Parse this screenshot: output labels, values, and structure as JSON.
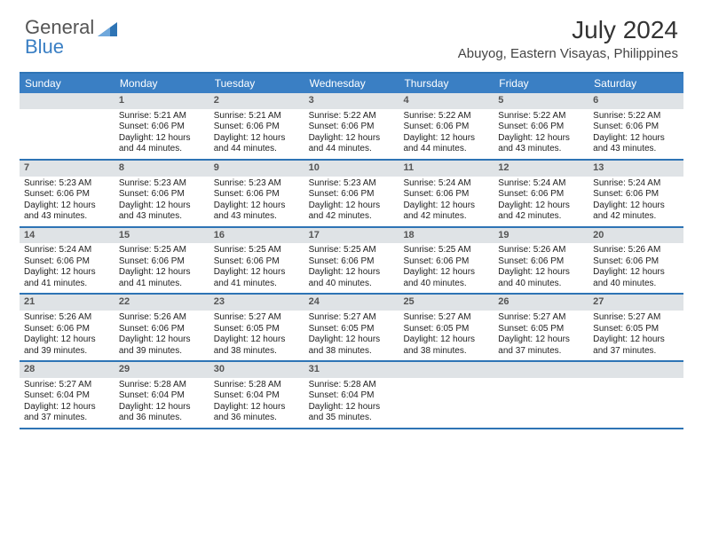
{
  "branding": {
    "logo_text_1": "General",
    "logo_text_2": "Blue",
    "logo_color_1": "#555555",
    "logo_color_2": "#3a7fc4"
  },
  "title": "July 2024",
  "location": "Abuyog, Eastern Visayas, Philippines",
  "colors": {
    "header_bg": "#3a7fc4",
    "border": "#2e74b5",
    "daynum_bg": "#dfe3e6",
    "text": "#222222"
  },
  "day_headers": [
    "Sunday",
    "Monday",
    "Tuesday",
    "Wednesday",
    "Thursday",
    "Friday",
    "Saturday"
  ],
  "weeks": [
    [
      {
        "num": "",
        "sunrise": "",
        "sunset": "",
        "daylight": ""
      },
      {
        "num": "1",
        "sunrise": "Sunrise: 5:21 AM",
        "sunset": "Sunset: 6:06 PM",
        "daylight": "Daylight: 12 hours and 44 minutes."
      },
      {
        "num": "2",
        "sunrise": "Sunrise: 5:21 AM",
        "sunset": "Sunset: 6:06 PM",
        "daylight": "Daylight: 12 hours and 44 minutes."
      },
      {
        "num": "3",
        "sunrise": "Sunrise: 5:22 AM",
        "sunset": "Sunset: 6:06 PM",
        "daylight": "Daylight: 12 hours and 44 minutes."
      },
      {
        "num": "4",
        "sunrise": "Sunrise: 5:22 AM",
        "sunset": "Sunset: 6:06 PM",
        "daylight": "Daylight: 12 hours and 44 minutes."
      },
      {
        "num": "5",
        "sunrise": "Sunrise: 5:22 AM",
        "sunset": "Sunset: 6:06 PM",
        "daylight": "Daylight: 12 hours and 43 minutes."
      },
      {
        "num": "6",
        "sunrise": "Sunrise: 5:22 AM",
        "sunset": "Sunset: 6:06 PM",
        "daylight": "Daylight: 12 hours and 43 minutes."
      }
    ],
    [
      {
        "num": "7",
        "sunrise": "Sunrise: 5:23 AM",
        "sunset": "Sunset: 6:06 PM",
        "daylight": "Daylight: 12 hours and 43 minutes."
      },
      {
        "num": "8",
        "sunrise": "Sunrise: 5:23 AM",
        "sunset": "Sunset: 6:06 PM",
        "daylight": "Daylight: 12 hours and 43 minutes."
      },
      {
        "num": "9",
        "sunrise": "Sunrise: 5:23 AM",
        "sunset": "Sunset: 6:06 PM",
        "daylight": "Daylight: 12 hours and 43 minutes."
      },
      {
        "num": "10",
        "sunrise": "Sunrise: 5:23 AM",
        "sunset": "Sunset: 6:06 PM",
        "daylight": "Daylight: 12 hours and 42 minutes."
      },
      {
        "num": "11",
        "sunrise": "Sunrise: 5:24 AM",
        "sunset": "Sunset: 6:06 PM",
        "daylight": "Daylight: 12 hours and 42 minutes."
      },
      {
        "num": "12",
        "sunrise": "Sunrise: 5:24 AM",
        "sunset": "Sunset: 6:06 PM",
        "daylight": "Daylight: 12 hours and 42 minutes."
      },
      {
        "num": "13",
        "sunrise": "Sunrise: 5:24 AM",
        "sunset": "Sunset: 6:06 PM",
        "daylight": "Daylight: 12 hours and 42 minutes."
      }
    ],
    [
      {
        "num": "14",
        "sunrise": "Sunrise: 5:24 AM",
        "sunset": "Sunset: 6:06 PM",
        "daylight": "Daylight: 12 hours and 41 minutes."
      },
      {
        "num": "15",
        "sunrise": "Sunrise: 5:25 AM",
        "sunset": "Sunset: 6:06 PM",
        "daylight": "Daylight: 12 hours and 41 minutes."
      },
      {
        "num": "16",
        "sunrise": "Sunrise: 5:25 AM",
        "sunset": "Sunset: 6:06 PM",
        "daylight": "Daylight: 12 hours and 41 minutes."
      },
      {
        "num": "17",
        "sunrise": "Sunrise: 5:25 AM",
        "sunset": "Sunset: 6:06 PM",
        "daylight": "Daylight: 12 hours and 40 minutes."
      },
      {
        "num": "18",
        "sunrise": "Sunrise: 5:25 AM",
        "sunset": "Sunset: 6:06 PM",
        "daylight": "Daylight: 12 hours and 40 minutes."
      },
      {
        "num": "19",
        "sunrise": "Sunrise: 5:26 AM",
        "sunset": "Sunset: 6:06 PM",
        "daylight": "Daylight: 12 hours and 40 minutes."
      },
      {
        "num": "20",
        "sunrise": "Sunrise: 5:26 AM",
        "sunset": "Sunset: 6:06 PM",
        "daylight": "Daylight: 12 hours and 40 minutes."
      }
    ],
    [
      {
        "num": "21",
        "sunrise": "Sunrise: 5:26 AM",
        "sunset": "Sunset: 6:06 PM",
        "daylight": "Daylight: 12 hours and 39 minutes."
      },
      {
        "num": "22",
        "sunrise": "Sunrise: 5:26 AM",
        "sunset": "Sunset: 6:06 PM",
        "daylight": "Daylight: 12 hours and 39 minutes."
      },
      {
        "num": "23",
        "sunrise": "Sunrise: 5:27 AM",
        "sunset": "Sunset: 6:05 PM",
        "daylight": "Daylight: 12 hours and 38 minutes."
      },
      {
        "num": "24",
        "sunrise": "Sunrise: 5:27 AM",
        "sunset": "Sunset: 6:05 PM",
        "daylight": "Daylight: 12 hours and 38 minutes."
      },
      {
        "num": "25",
        "sunrise": "Sunrise: 5:27 AM",
        "sunset": "Sunset: 6:05 PM",
        "daylight": "Daylight: 12 hours and 38 minutes."
      },
      {
        "num": "26",
        "sunrise": "Sunrise: 5:27 AM",
        "sunset": "Sunset: 6:05 PM",
        "daylight": "Daylight: 12 hours and 37 minutes."
      },
      {
        "num": "27",
        "sunrise": "Sunrise: 5:27 AM",
        "sunset": "Sunset: 6:05 PM",
        "daylight": "Daylight: 12 hours and 37 minutes."
      }
    ],
    [
      {
        "num": "28",
        "sunrise": "Sunrise: 5:27 AM",
        "sunset": "Sunset: 6:04 PM",
        "daylight": "Daylight: 12 hours and 37 minutes."
      },
      {
        "num": "29",
        "sunrise": "Sunrise: 5:28 AM",
        "sunset": "Sunset: 6:04 PM",
        "daylight": "Daylight: 12 hours and 36 minutes."
      },
      {
        "num": "30",
        "sunrise": "Sunrise: 5:28 AM",
        "sunset": "Sunset: 6:04 PM",
        "daylight": "Daylight: 12 hours and 36 minutes."
      },
      {
        "num": "31",
        "sunrise": "Sunrise: 5:28 AM",
        "sunset": "Sunset: 6:04 PM",
        "daylight": "Daylight: 12 hours and 35 minutes."
      },
      {
        "num": "",
        "sunrise": "",
        "sunset": "",
        "daylight": ""
      },
      {
        "num": "",
        "sunrise": "",
        "sunset": "",
        "daylight": ""
      },
      {
        "num": "",
        "sunrise": "",
        "sunset": "",
        "daylight": ""
      }
    ]
  ]
}
